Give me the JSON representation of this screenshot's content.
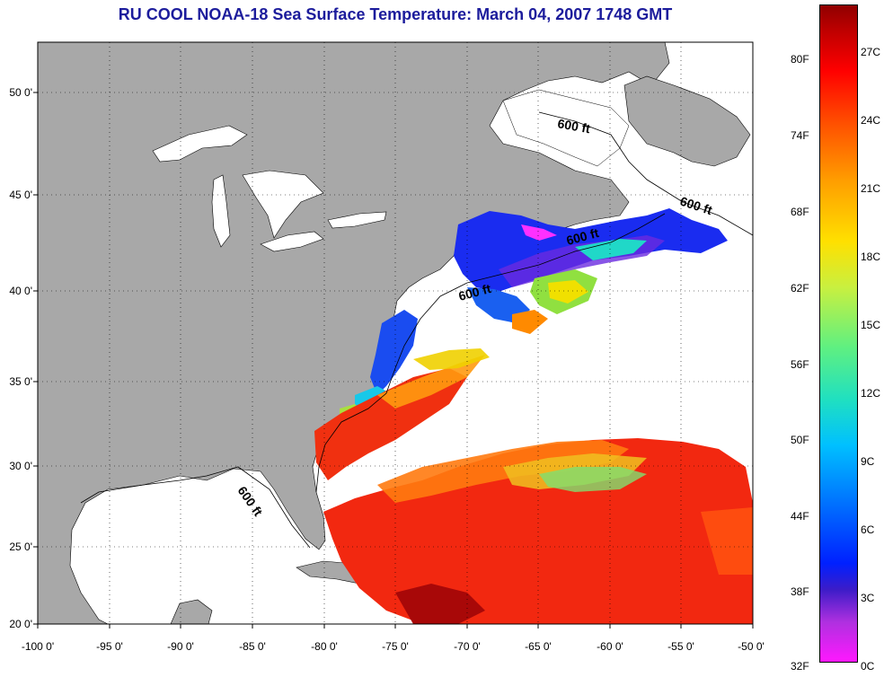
{
  "title": "RU COOL  NOAA-18  Sea Surface Temperature:  March 04, 2007 1748 GMT",
  "axes": {
    "x_ticks": [
      "-100 0'",
      "-95 0'",
      "-90 0'",
      "-85 0'",
      "-80 0'",
      "-75 0'",
      "-70 0'",
      "-65 0'",
      "-60 0'",
      "-55 0'",
      "-50 0'"
    ],
    "y_ticks": [
      "50 0'",
      "45 0'",
      "40 0'",
      "35 0'",
      "30 0'",
      "25 0'",
      "20 0'"
    ]
  },
  "contour_labels": [
    "600 ft",
    "600 ft",
    "600 ft",
    "600 ft",
    "600 ft"
  ],
  "colorbar": {
    "fahrenheit": [
      "80F",
      "74F",
      "68F",
      "62F",
      "56F",
      "50F",
      "44F",
      "38F",
      "32F"
    ],
    "celsius": [
      "27C",
      "24C",
      "21C",
      "18C",
      "15C",
      "12C",
      "9C",
      "6C",
      "3C",
      "0C"
    ]
  },
  "colors": {
    "land": "#a8a8a8",
    "title": "#1c1c9c",
    "cloud": "#ffffff"
  }
}
